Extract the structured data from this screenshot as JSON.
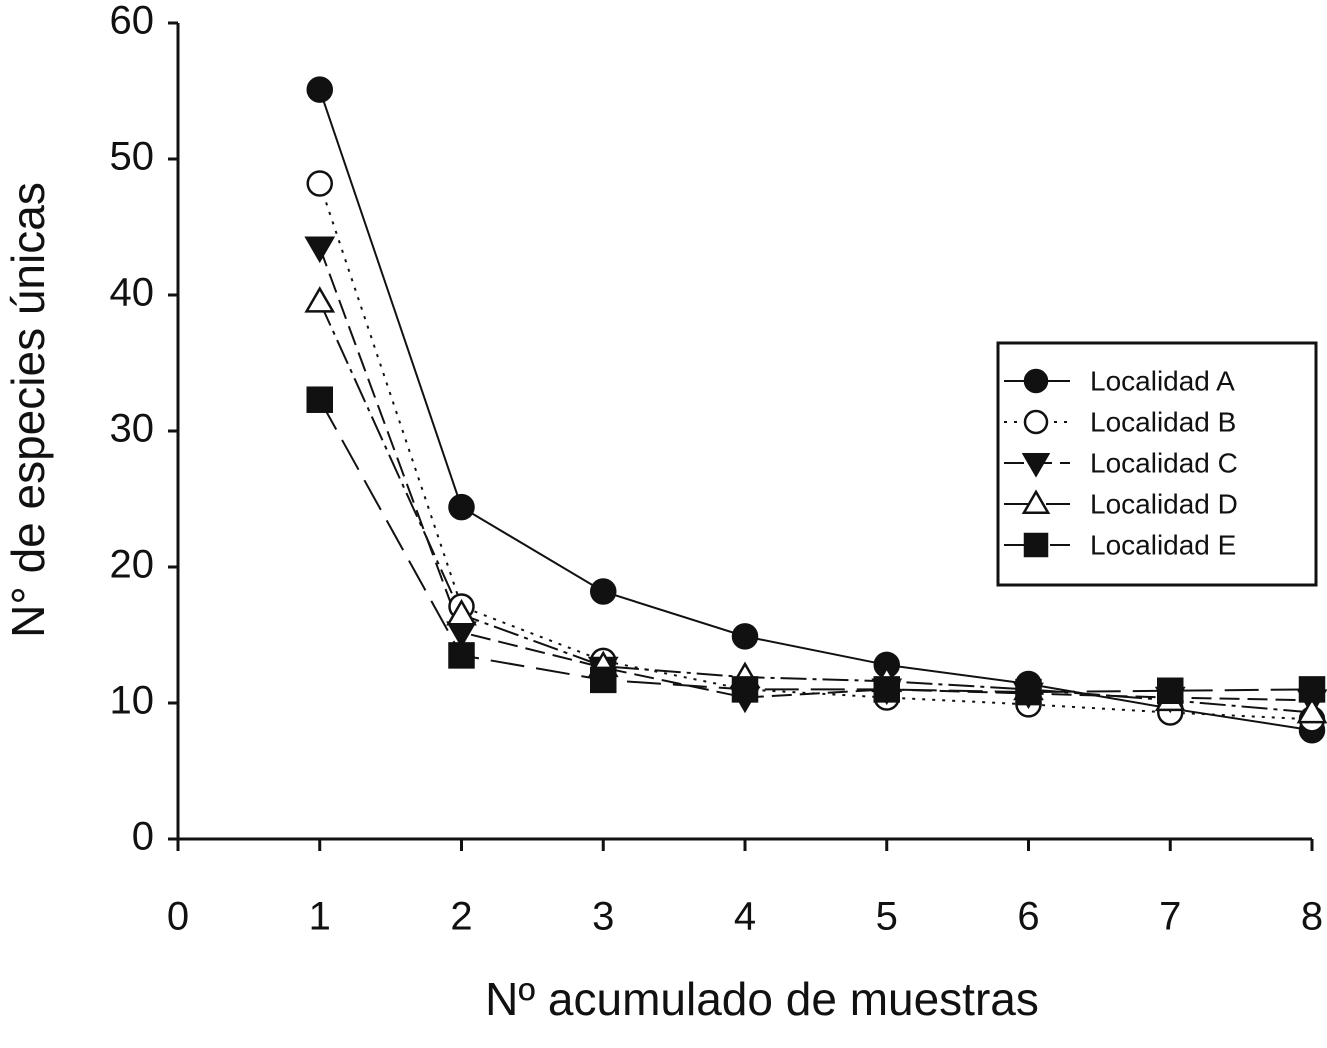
{
  "chart_data": {
    "type": "line",
    "xlabel": "Nº acumulado de muestras",
    "ylabel": "N° de especies únicas",
    "x": [
      1,
      2,
      3,
      4,
      5,
      6,
      7,
      8
    ],
    "xlim": [
      0,
      8
    ],
    "xticks": [
      0,
      1,
      2,
      3,
      4,
      5,
      6,
      7,
      8
    ],
    "ylim": [
      0,
      60
    ],
    "yticks": [
      0,
      10,
      20,
      30,
      40,
      50,
      60
    ],
    "legend": "right",
    "series": [
      {
        "name": "Localidad A",
        "color": "#111111",
        "marker": "circle",
        "filled": true,
        "line_style": "solid",
        "values": [
          55.1,
          24.4,
          18.2,
          14.9,
          12.8,
          11.4,
          9.6,
          8.0
        ]
      },
      {
        "name": "Localidad B",
        "color": "#111111",
        "marker": "circle",
        "filled": false,
        "line_style": "dotted",
        "values": [
          48.2,
          17.1,
          13.1,
          11.0,
          10.4,
          9.9,
          9.3,
          8.8
        ]
      },
      {
        "name": "Localidad C",
        "color": "#111111",
        "marker": "triangle-down",
        "filled": true,
        "line_style": "dashed",
        "values": [
          43.5,
          15.2,
          12.6,
          10.4,
          11.0,
          10.7,
          10.4,
          10.2
        ]
      },
      {
        "name": "Localidad D",
        "color": "#111111",
        "marker": "triangle-up",
        "filled": false,
        "line_style": "dashdot",
        "values": [
          39.5,
          16.5,
          12.7,
          11.9,
          11.6,
          11.0,
          10.2,
          9.3
        ]
      },
      {
        "name": "Localidad E",
        "color": "#111111",
        "marker": "square",
        "filled": true,
        "line_style": "longdash",
        "values": [
          32.3,
          13.5,
          11.7,
          11.0,
          11.0,
          10.8,
          10.9,
          11.0
        ]
      }
    ]
  }
}
